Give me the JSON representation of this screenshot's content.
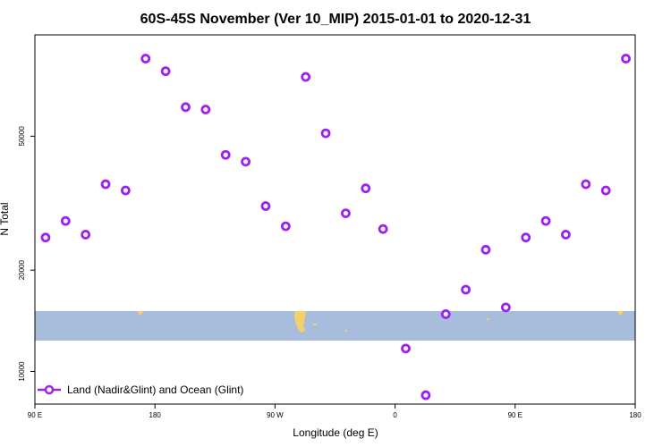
{
  "chart_data": {
    "type": "scatter",
    "title": "60S-45S November (Ver 10_MIP)   2015-01-01 to 2020-12-31",
    "xlabel": "Longitude (deg E)",
    "ylabel": "N Total",
    "x_ticks": [
      {
        "value": 90,
        "label": "90 E"
      },
      {
        "value": 180,
        "label": "180"
      },
      {
        "value": 270,
        "label": "90 W"
      },
      {
        "value": 360,
        "label": "0"
      },
      {
        "value": 450,
        "label": "90 E"
      },
      {
        "value": 540,
        "label": "180"
      }
    ],
    "y_ticks": [
      {
        "value": 10000,
        "label": "10000"
      },
      {
        "value": 20000,
        "label": "20000"
      },
      {
        "value": 50000,
        "label": "50000"
      }
    ],
    "xlim": [
      90,
      540
    ],
    "ylim_log": [
      8000,
      100000
    ],
    "legend": {
      "position": "bottom-left"
    },
    "series": [
      {
        "name": "Land (Nadir&Glint) and Ocean (Glint)",
        "color": "#a020f0",
        "marker": "open-circle",
        "points": [
          {
            "x": 98,
            "y": 25000
          },
          {
            "x": 113,
            "y": 28000
          },
          {
            "x": 128,
            "y": 25500
          },
          {
            "x": 143,
            "y": 36000
          },
          {
            "x": 158,
            "y": 34500
          },
          {
            "x": 173,
            "y": 85000
          },
          {
            "x": 188,
            "y": 78000
          },
          {
            "x": 203,
            "y": 61000
          },
          {
            "x": 218,
            "y": 60000
          },
          {
            "x": 233,
            "y": 44000
          },
          {
            "x": 248,
            "y": 42000
          },
          {
            "x": 263,
            "y": 31000
          },
          {
            "x": 278,
            "y": 27000
          },
          {
            "x": 293,
            "y": 75000
          },
          {
            "x": 308,
            "y": 51000
          },
          {
            "x": 323,
            "y": 29500
          },
          {
            "x": 338,
            "y": 35000
          },
          {
            "x": 351,
            "y": 26500
          },
          {
            "x": 368,
            "y": 11700
          },
          {
            "x": 383,
            "y": 8500
          },
          {
            "x": 398,
            "y": 14800
          },
          {
            "x": 413,
            "y": 17500
          },
          {
            "x": 428,
            "y": 23000
          },
          {
            "x": 443,
            "y": 15500
          },
          {
            "x": 458,
            "y": 25000
          },
          {
            "x": 473,
            "y": 28000
          },
          {
            "x": 488,
            "y": 25500
          },
          {
            "x": 503,
            "y": 36000
          },
          {
            "x": 518,
            "y": 34500
          },
          {
            "x": 533,
            "y": 85000
          }
        ]
      }
    ],
    "latitude_band": {
      "color": "#a8bcdc",
      "land_color": "#f5cf6a"
    }
  }
}
